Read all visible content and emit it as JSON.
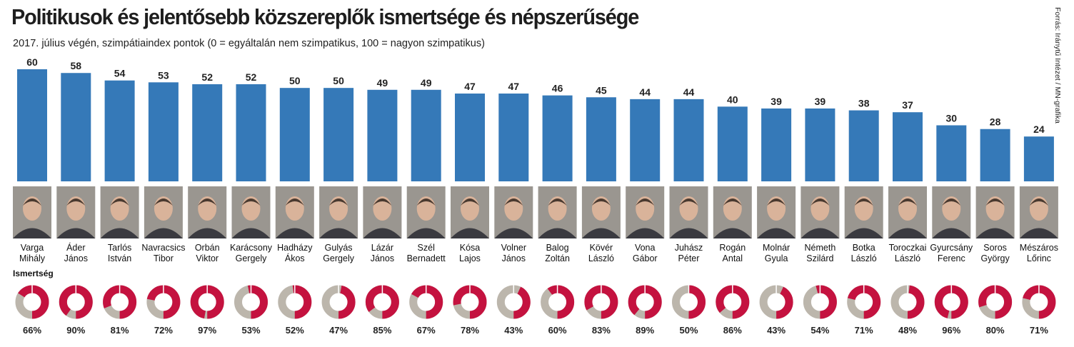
{
  "title": "Politikusok és jelentősebb közszereplők ismertsége és népszerűsége",
  "subtitle": "2017. július végén, szimpátiaindex pontok (0 = egyáltalán nem szimpatikus, 100 = nagyon szimpatikus)",
  "source": "Forrás: Iránytű Intézet / MN-grafika",
  "colors": {
    "bar": "#3579b8",
    "donut_known": "#c4123f",
    "donut_unknown": "#bcb6ac",
    "photo_bg": "#9a9690"
  },
  "chart_data": {
    "type": "bar",
    "ylim": [
      0,
      60
    ],
    "categories": [
      [
        "Varga",
        "Mihály"
      ],
      [
        "Áder",
        "János"
      ],
      [
        "Tarlós",
        "István"
      ],
      [
        "Navracsics",
        "Tibor"
      ],
      [
        "Orbán",
        "Viktor"
      ],
      [
        "Karácsony",
        "Gergely"
      ],
      [
        "Hadházy",
        "Ákos"
      ],
      [
        "Gulyás",
        "Gergely"
      ],
      [
        "Lázár",
        "János"
      ],
      [
        "Szél",
        "Bernadett"
      ],
      [
        "Kósa",
        "Lajos"
      ],
      [
        "Volner",
        "János"
      ],
      [
        "Balog",
        "Zoltán"
      ],
      [
        "Kövér",
        "László"
      ],
      [
        "Vona",
        "Gábor"
      ],
      [
        "Juhász",
        "Péter"
      ],
      [
        "Rogán",
        "Antal"
      ],
      [
        "Molnár",
        "Gyula"
      ],
      [
        "Németh",
        "Szilárd"
      ],
      [
        "Botka",
        "László"
      ],
      [
        "Toroczkai",
        "László"
      ],
      [
        "Gyurcsány",
        "Ferenc"
      ],
      [
        "Soros",
        "György"
      ],
      [
        "Mészáros",
        "Lőrinc"
      ]
    ],
    "values": [
      60,
      58,
      54,
      53,
      52,
      52,
      50,
      50,
      49,
      49,
      47,
      47,
      46,
      45,
      44,
      44,
      40,
      39,
      39,
      38,
      37,
      30,
      28,
      24
    ],
    "secondary_label": "Ismertség",
    "secondary_values": [
      66,
      90,
      81,
      72,
      97,
      53,
      52,
      47,
      85,
      67,
      78,
      43,
      60,
      83,
      89,
      50,
      86,
      43,
      54,
      71,
      48,
      96,
      80,
      71
    ],
    "secondary_unit": "%"
  }
}
